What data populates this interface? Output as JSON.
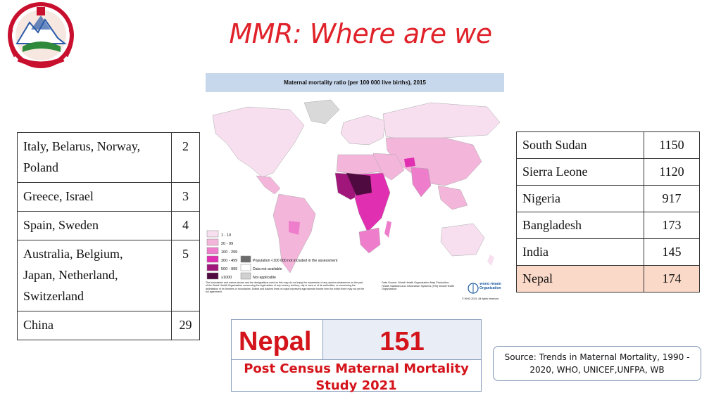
{
  "title": "MMR: Where are we",
  "logo": {
    "icon": "nepal-emblem-icon"
  },
  "map": {
    "header": "Maternal mortality ratio (per 100 000 live births), 2015",
    "legend": [
      {
        "label": "1 - 19",
        "color": "#f7dff0"
      },
      {
        "label": "20 - 99",
        "color": "#f4b5db"
      },
      {
        "label": "100 - 299",
        "color": "#ee7ecb"
      },
      {
        "label": "300 - 499",
        "color": "#e02fb0"
      },
      {
        "label": "500 - 999",
        "color": "#a0167a"
      },
      {
        "label": "≥1000",
        "color": "#4f0a3f"
      }
    ],
    "legend_extra": [
      {
        "label": "Population <100 000 not included in the assessment",
        "color": "#6b6b6b"
      },
      {
        "label": "Data not available",
        "color": "#ffffff"
      },
      {
        "label": "Not applicable",
        "color": "#d0d0d0"
      }
    ],
    "disclaimer": "The boundaries and names shown and the designations used on this map do not imply the expression of any opinion whatsoever on the part of the World Health Organization concerning the legal status of any country, territory, city or area or of its authorities, or concerning the delimitation of its frontiers or boundaries. Dotted and dashed lines on maps represent approximate border lines for which there may not yet be full agreement.",
    "data_source": "Data Source: World Health Organization Map Production: Health Statistics and Information Systems (HSI) World Health Organization",
    "who_text": "World Health Organization",
    "copyright": "© WHO 2015. All rights reserved."
  },
  "left_table": {
    "rows": [
      {
        "countries": [
          "Italy, Belarus, Norway,",
          "Poland"
        ],
        "value": "2"
      },
      {
        "countries": [
          "Greece, Israel"
        ],
        "value": "3"
      },
      {
        "countries": [
          "Spain, Sweden"
        ],
        "value": "4"
      },
      {
        "countries": [
          "Australia, Belgium,",
          "Japan, Netherland,",
          "Switzerland"
        ],
        "value": "5"
      },
      {
        "countries": [
          "China"
        ],
        "value": "29"
      }
    ]
  },
  "right_table": {
    "rows": [
      {
        "country": "South Sudan",
        "value": "1150"
      },
      {
        "country": "Sierra Leone",
        "value": "1120"
      },
      {
        "country": "Nigeria",
        "value": "917"
      },
      {
        "country": "Bangladesh",
        "value": "173"
      },
      {
        "country": "India",
        "value": "145"
      },
      {
        "country": "Nepal",
        "value": "174"
      }
    ],
    "highlight_color": "#fbd9c8"
  },
  "nepal_box": {
    "label": "Nepal",
    "value": "151",
    "subtitle_line1": "Post Census Maternal Mortality",
    "subtitle_line2": "Study 2021"
  },
  "source": {
    "line1": "Source: Trends in Maternal Mortality, 1990 -",
    "line2": "2020, WHO, UNICEF,UNFPA, WB"
  },
  "colors": {
    "title": "#e0222a",
    "accent": "#d4141b"
  }
}
